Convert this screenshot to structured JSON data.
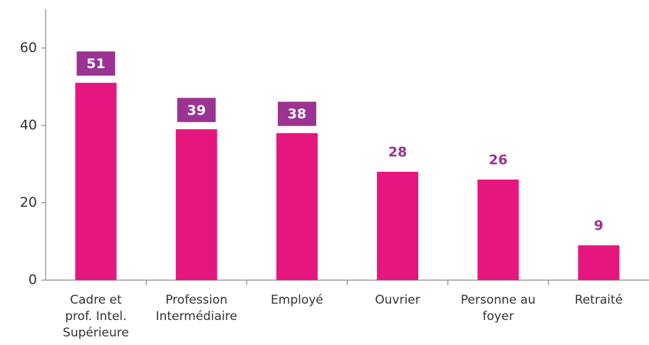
{
  "chart_data": {
    "type": "bar",
    "categories": [
      "Cadre et\nprof. Intel.\nSupérieure",
      "Profession\nIntermédiaire",
      "Employé",
      "Ouvrier",
      "Personne au\nfoyer",
      "Retraité"
    ],
    "values": [
      51,
      39,
      38,
      28,
      26,
      9
    ],
    "color": "#e5177f",
    "label_color": "#9a3391",
    "boxed_labels": [
      true,
      true,
      true,
      false,
      false,
      false
    ],
    "ylim": [
      0,
      70
    ],
    "yticks": [
      0,
      20,
      40,
      60
    ],
    "grid": false
  }
}
